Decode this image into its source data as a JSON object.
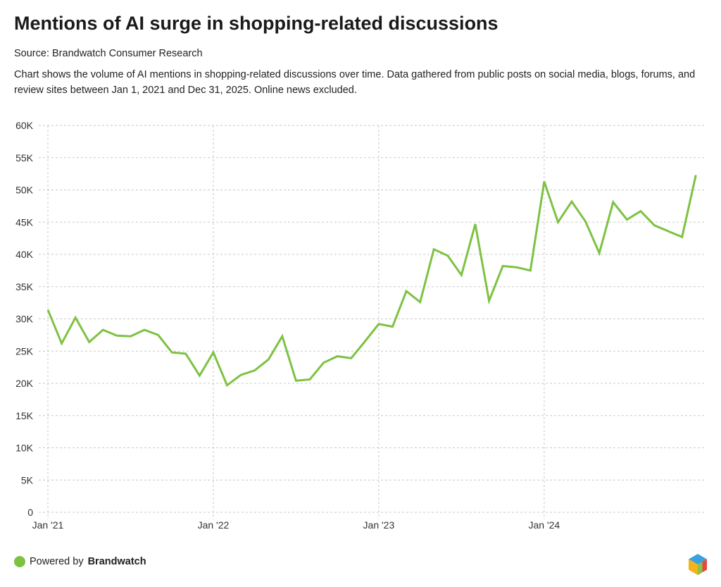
{
  "title": "Mentions of AI surge in shopping-related discussions",
  "source": "Source: Brandwatch Consumer Research",
  "description": "Chart shows the volume of AI mentions in shopping-related discussions over time. Data gathered from public posts on social media, blogs, forums, and review sites between Jan 1, 2021 and Dec 31, 2025. Online news excluded.",
  "footer": {
    "powered": "Powered by",
    "brand": "Brandwatch"
  },
  "colors": {
    "line": "#7dc242",
    "grid": "#c8c8c8"
  },
  "chart_data": {
    "type": "line",
    "title": "Mentions of AI surge in shopping-related discussions",
    "xlabel": "",
    "ylabel": "",
    "ylim": [
      0,
      60000
    ],
    "yticks": [
      0,
      5000,
      10000,
      15000,
      20000,
      25000,
      30000,
      35000,
      40000,
      45000,
      50000,
      55000,
      60000
    ],
    "ytick_labels": [
      "0",
      "5K",
      "10K",
      "15K",
      "20K",
      "25K",
      "30K",
      "35K",
      "40K",
      "45K",
      "50K",
      "55K",
      "60K"
    ],
    "xtick_labels": [
      "Jan '21",
      "Jan '22",
      "Jan '23",
      "Jan '24"
    ],
    "xtick_month_index": [
      0,
      12,
      24,
      36
    ],
    "grid": true,
    "x_start": "2021-01",
    "x_interval": "month",
    "series": [
      {
        "name": "AI mentions",
        "values": [
          31400,
          26200,
          30200,
          26400,
          28300,
          27400,
          27300,
          28300,
          27500,
          24800,
          24600,
          21200,
          24800,
          19700,
          21300,
          22000,
          23700,
          27300,
          20400,
          20600,
          23200,
          24200,
          23900,
          26500,
          29200,
          28800,
          34300,
          32600,
          40800,
          39800,
          36800,
          44700,
          32800,
          38200,
          38000,
          37500,
          51300,
          45000,
          48200,
          45100,
          40200,
          48100,
          45400,
          46700,
          44500,
          43600,
          42700,
          52300
        ]
      }
    ]
  }
}
